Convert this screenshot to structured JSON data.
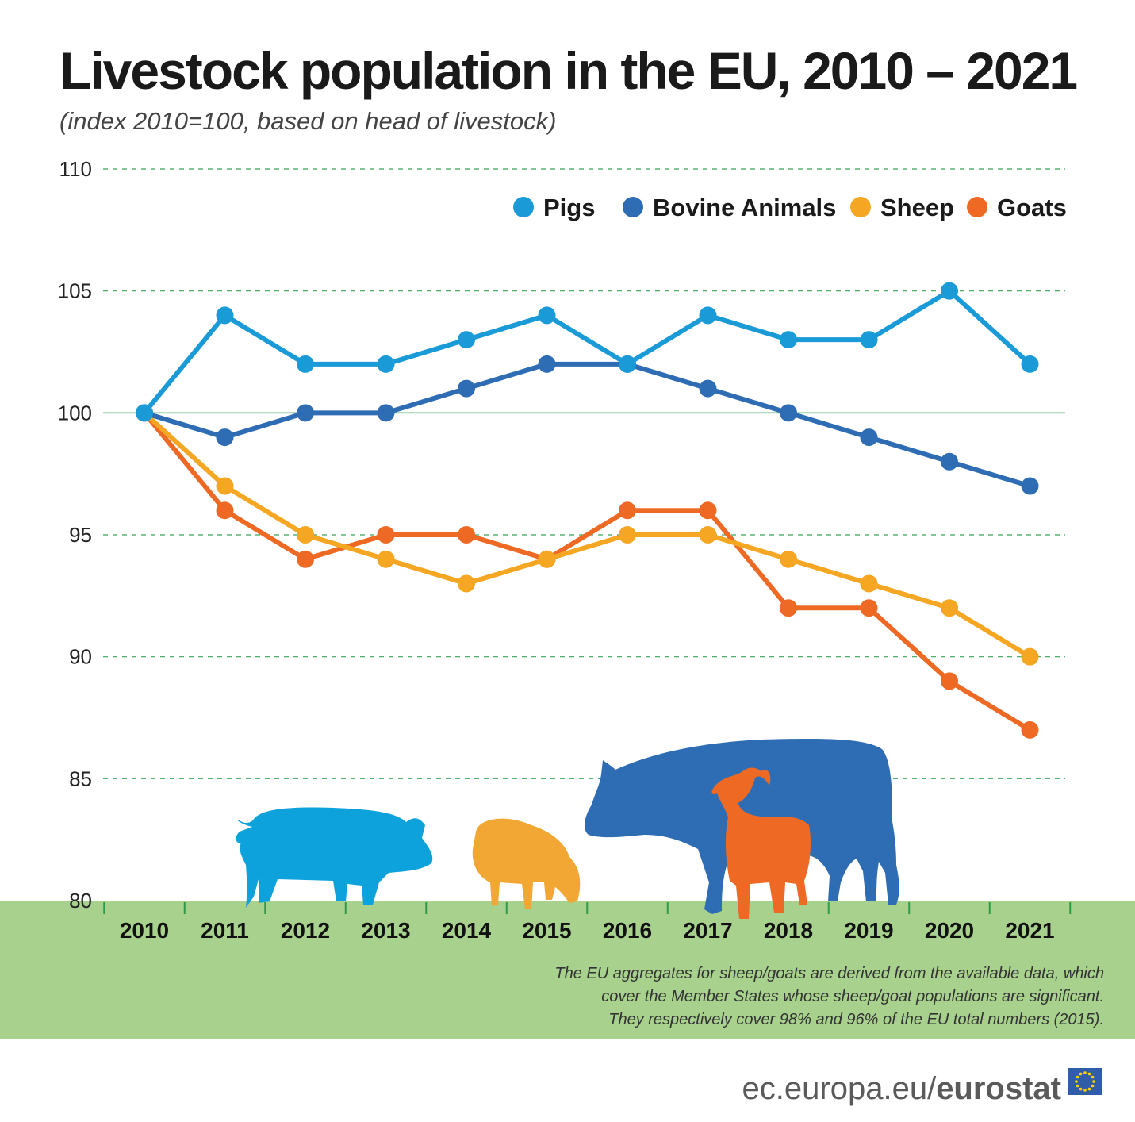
{
  "chart_data": {
    "type": "line",
    "title": "Livestock population in the EU, 2010 – 2021",
    "subtitle": "(index 2010=100, based on head of livestock)",
    "categories": [
      "2010",
      "2011",
      "2012",
      "2013",
      "2014",
      "2015",
      "2016",
      "2017",
      "2018",
      "2019",
      "2020",
      "2021"
    ],
    "y_ticks": [
      "80",
      "85",
      "90",
      "95",
      "100",
      "105",
      "110"
    ],
    "ylim": [
      80,
      110
    ],
    "grid": true,
    "legend_position": "top-right",
    "series": [
      {
        "name": "Pigs",
        "color": "#1a9bd7",
        "values": [
          100,
          104,
          102,
          102,
          103,
          104,
          102,
          104,
          103,
          103,
          105,
          102
        ]
      },
      {
        "name": "Bovine Animals",
        "color": "#2e6db4",
        "values": [
          100,
          99,
          100,
          100,
          101,
          102,
          102,
          101,
          100,
          99,
          98,
          97
        ]
      },
      {
        "name": "Sheep",
        "color": "#f5a623",
        "values": [
          100,
          97,
          95,
          94,
          93,
          94,
          95,
          95,
          94,
          93,
          92,
          90
        ]
      },
      {
        "name": "Goats",
        "color": "#ee6a24",
        "values": [
          100,
          96,
          94,
          95,
          95,
          94,
          96,
          96,
          92,
          92,
          89,
          87
        ]
      }
    ],
    "note_lines": [
      "The EU aggregates for sheep/goats are derived from the available data, which",
      "cover the Member States whose sheep/goat populations are significant.",
      "They respectively cover 98% and 96% of the EU total numbers (2015)."
    ]
  },
  "source": {
    "light": "ec.europa.eu/",
    "bold": "eurostat"
  },
  "icons": [
    "pig-icon",
    "sheep-icon",
    "cow-icon",
    "goat-icon",
    "eu-flag-icon"
  ]
}
